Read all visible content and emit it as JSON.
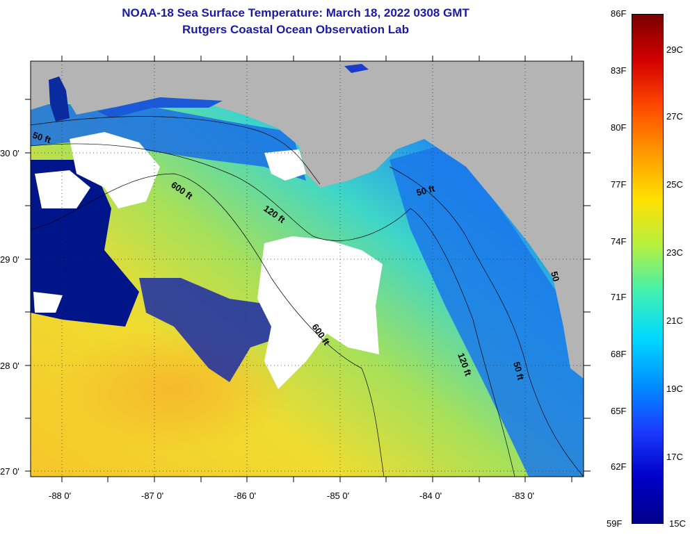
{
  "title": "NOAA-18 Sea Surface Temperature:  March 18, 2022 0308 GMT",
  "subtitle": "Rutgers Coastal Ocean Observation Lab",
  "map": {
    "lat_labels": [
      "30 0'",
      "29 0'",
      "28 0'",
      "27 0'"
    ],
    "lon_labels": [
      "-88 0'",
      "-87 0'",
      "-86 0'",
      "-85 0'",
      "-84 0'",
      "-83 0'"
    ],
    "depth_labels": [
      "50 ft",
      "600 ft",
      "120 ft",
      "50 ft",
      "600 ft",
      "120 ft",
      "50 ft",
      "50"
    ],
    "colors": {
      "land": "#b4b4b4",
      "cloud": "#ffffff",
      "warm": "#f2d02a",
      "mid": "#9fe05a",
      "cool": "#1b73e6",
      "cold": "#001a8a"
    }
  },
  "colorbar": {
    "fahrenheit_labels": [
      "86F",
      "83F",
      "80F",
      "77F",
      "74F",
      "71F",
      "68F",
      "65F",
      "62F",
      "59F"
    ],
    "celsius_labels": [
      "29C",
      "27C",
      "25C",
      "23C",
      "21C",
      "19C",
      "17C",
      "15C"
    ],
    "stops": [
      "#7a0000",
      "#d40000",
      "#ff4a00",
      "#ff9a00",
      "#ffe000",
      "#b4f040",
      "#40f0b0",
      "#00d8ff",
      "#0090ff",
      "#1a3cff",
      "#0000c8",
      "#00008a"
    ]
  }
}
